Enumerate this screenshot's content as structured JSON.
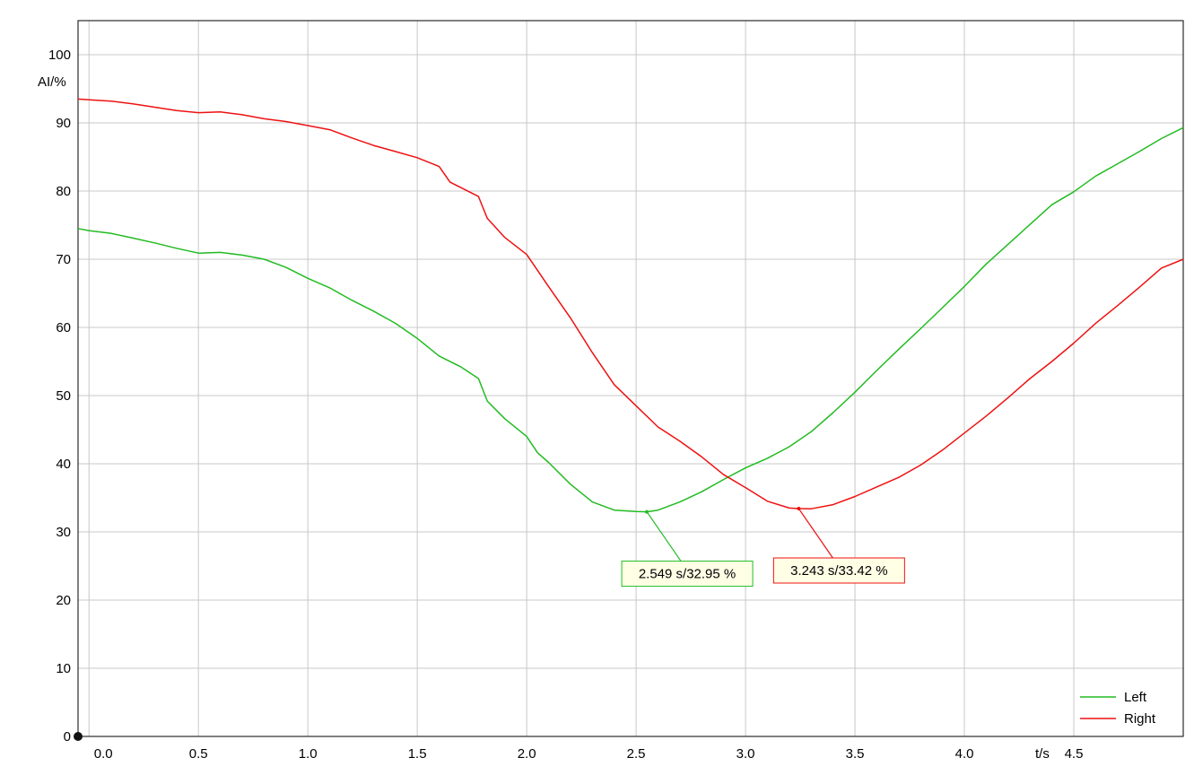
{
  "chart_data": {
    "type": "line",
    "xlabel": "t/s",
    "ylabel": "AI/%",
    "xlim": [
      -0.05,
      5.0
    ],
    "ylim": [
      0,
      105
    ],
    "xticks": [
      0.0,
      0.5,
      1.0,
      1.5,
      2.0,
      2.5,
      3.0,
      3.5,
      4.0,
      4.5
    ],
    "xtick_labels": [
      "0.0",
      "0.5",
      "1.0",
      "1.5",
      "2.0",
      "2.5",
      "3.0",
      "3.5",
      "4.0",
      "4.5"
    ],
    "yticks": [
      0,
      10,
      20,
      30,
      40,
      50,
      60,
      70,
      80,
      90,
      100
    ],
    "ytick_labels": [
      "0",
      "10",
      "20",
      "30",
      "40",
      "50",
      "60",
      "70",
      "80",
      "90",
      "100"
    ],
    "grid": true,
    "legend_position": "bottom-right",
    "series": [
      {
        "name": "Left",
        "color": "#22bb22",
        "x": [
          -0.05,
          0.0,
          0.1,
          0.2,
          0.3,
          0.4,
          0.5,
          0.6,
          0.7,
          0.8,
          0.9,
          1.0,
          1.1,
          1.2,
          1.3,
          1.4,
          1.5,
          1.6,
          1.7,
          1.78,
          1.82,
          1.9,
          2.0,
          2.05,
          2.1,
          2.2,
          2.3,
          2.4,
          2.5,
          2.55,
          2.6,
          2.7,
          2.8,
          2.9,
          3.0,
          3.1,
          3.2,
          3.3,
          3.4,
          3.5,
          3.6,
          3.7,
          3.8,
          3.9,
          4.0,
          4.1,
          4.2,
          4.3,
          4.4,
          4.5,
          4.6,
          4.7,
          4.8,
          4.9,
          5.0
        ],
        "y": [
          74.5,
          74.2,
          73.8,
          73.1,
          72.4,
          71.6,
          70.9,
          71.0,
          70.6,
          70.0,
          68.8,
          67.2,
          65.8,
          64.0,
          62.4,
          60.6,
          58.4,
          55.8,
          54.2,
          52.5,
          49.2,
          46.6,
          44.0,
          41.6,
          40.2,
          37.0,
          34.4,
          33.2,
          33.0,
          32.95,
          33.2,
          34.4,
          35.9,
          37.7,
          39.4,
          40.8,
          42.5,
          44.7,
          47.5,
          50.5,
          53.7,
          56.8,
          59.8,
          62.9,
          66.0,
          69.3,
          72.2,
          75.1,
          78.0,
          79.9,
          82.2,
          84.0,
          85.8,
          87.7,
          89.3
        ]
      },
      {
        "name": "Right",
        "color": "#ee1111",
        "x": [
          -0.05,
          0.0,
          0.1,
          0.2,
          0.3,
          0.4,
          0.5,
          0.6,
          0.7,
          0.8,
          0.9,
          1.0,
          1.1,
          1.2,
          1.3,
          1.4,
          1.5,
          1.6,
          1.65,
          1.7,
          1.78,
          1.82,
          1.9,
          2.0,
          2.1,
          2.2,
          2.3,
          2.4,
          2.5,
          2.6,
          2.7,
          2.8,
          2.9,
          3.0,
          3.1,
          3.2,
          3.243,
          3.3,
          3.4,
          3.5,
          3.6,
          3.7,
          3.8,
          3.9,
          4.0,
          4.1,
          4.2,
          4.3,
          4.4,
          4.5,
          4.6,
          4.7,
          4.8,
          4.9,
          5.0
        ],
        "y": [
          93.5,
          93.4,
          93.2,
          92.8,
          92.3,
          91.8,
          91.5,
          91.6,
          91.2,
          90.6,
          90.2,
          89.6,
          89.0,
          87.8,
          86.7,
          85.8,
          84.9,
          83.6,
          81.3,
          80.5,
          79.2,
          76.0,
          73.2,
          70.7,
          66.0,
          61.4,
          56.3,
          51.6,
          48.5,
          45.4,
          43.3,
          41.0,
          38.4,
          36.5,
          34.5,
          33.5,
          33.42,
          33.4,
          34.0,
          35.2,
          36.6,
          38.0,
          39.8,
          42.0,
          44.5,
          47.0,
          49.7,
          52.5,
          55.0,
          57.7,
          60.6,
          63.2,
          65.9,
          68.7,
          70.0
        ]
      }
    ],
    "annotations": [
      {
        "series": "Left",
        "x": 2.549,
        "y": 32.95,
        "text": "2.549 s/32.95 %",
        "color": "#22bb22"
      },
      {
        "series": "Right",
        "x": 3.243,
        "y": 33.42,
        "text": "3.243 s/33.42 %",
        "color": "#ee1111"
      }
    ]
  }
}
